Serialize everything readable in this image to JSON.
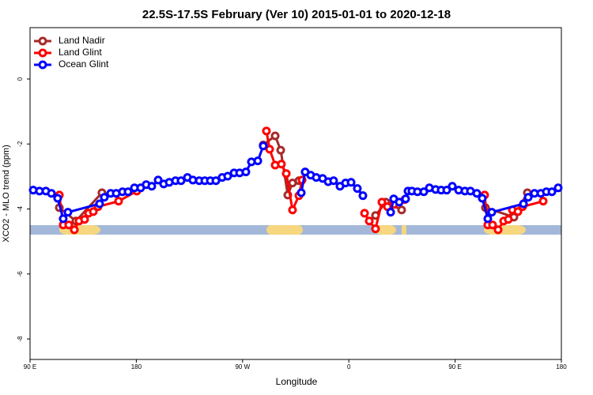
{
  "chart_data": {
    "type": "line",
    "title": "22.5S-17.5S February (Ver 10)   2015-01-01 to 2020-12-18",
    "xlabel": "Longitude",
    "ylabel": "XCO2 - MLO trend (ppm)",
    "xlim": [
      90,
      540
    ],
    "ylim": [
      -8.63,
      1.58
    ],
    "xticks": [
      {
        "value": 90,
        "label": "90 E"
      },
      {
        "value": 180,
        "label": "180"
      },
      {
        "value": 270,
        "label": "90 W"
      },
      {
        "value": 360,
        "label": "0"
      },
      {
        "value": 450,
        "label": "90 E"
      },
      {
        "value": 540,
        "label": "180"
      }
    ],
    "yticks": [
      0,
      -2,
      -4,
      -6,
      -8
    ],
    "legend": "upper left",
    "series": [
      {
        "name": "Land Nadir",
        "color": "#a52a2a",
        "x": [
          114.8,
          128.8,
          150.9,
          null,
          287.5,
          297.6,
          302.3,
          308.3,
          312.3,
          317.7,
          null,
          382.6,
          391.3,
          404.7,
          null,
          475.7,
          499.8,
          511.2
        ],
        "values": [
          -3.96,
          -4.37,
          -3.5,
          null,
          -2.03,
          -1.75,
          -2.19,
          -3.57,
          -3.2,
          -3.13,
          null,
          -4.2,
          -3.79,
          -4.03,
          null,
          -3.96,
          -4.25,
          -3.5
        ]
      },
      {
        "name": "Land Glint",
        "color": "#ff0000",
        "x": [
          114.8,
          118.1,
          122.8,
          127.5,
          131.5,
          136.2,
          139.6,
          143.6,
          147.6,
          165.0,
          180.4,
          null,
          290.2,
          292.9,
          297.6,
          302.9,
          307.0,
          312.3,
          317.7,
          320.4,
          null,
          373.3,
          377.3,
          382.6,
          388.0,
          392.7,
          398.0,
          407.4,
          null,
          475.0,
          477.7,
          481.7,
          486.4,
          491.1,
          495.1,
          498.5,
          503.2,
          507.2,
          524.6
        ],
        "values": [
          -3.57,
          -4.49,
          -4.49,
          -4.64,
          -4.37,
          -4.32,
          -4.13,
          -4.08,
          -3.93,
          -3.76,
          -3.45,
          null,
          -1.6,
          -2.16,
          -2.65,
          -2.62,
          -2.91,
          -4.03,
          -3.59,
          -3.11,
          null,
          -4.13,
          -4.37,
          -4.61,
          -3.79,
          -3.93,
          -3.86,
          -3.71,
          null,
          -3.57,
          -4.49,
          -4.49,
          -4.64,
          -4.37,
          -4.32,
          -4.03,
          -4.08,
          -3.93,
          -3.76
        ]
      },
      {
        "name": "Ocean Glint",
        "color": "#0000ff",
        "x": [
          92.7,
          98.0,
          103.4,
          108.1,
          113.4,
          118.1,
          122.1,
          148.9,
          152.9,
          158.3,
          163.0,
          168.3,
          173.0,
          178.4,
          183.7,
          188.4,
          193.1,
          198.5,
          203.2,
          207.9,
          213.2,
          217.9,
          223.3,
          227.9,
          233.3,
          238.0,
          242.7,
          247.4,
          252.7,
          257.4,
          262.8,
          267.5,
          272.8,
          277.5,
          282.9,
          287.5,
          null,
          319.7,
          323.0,
          327.7,
          332.4,
          337.8,
          342.5,
          347.1,
          352.5,
          357.2,
          361.9,
          367.2,
          371.9,
          null,
          395.4,
          398.0,
          402.7,
          408.1,
          410.1,
          413.4,
          418.1,
          423.5,
          428.2,
          433.5,
          438.2,
          442.9,
          447.6,
          453.0,
          458.3,
          463.0,
          468.4,
          473.0,
          477.7,
          481.1,
          507.9,
          511.9,
          517.2,
          522.6,
          527.3,
          532.0,
          537.3
        ],
        "values": [
          -3.42,
          -3.45,
          -3.45,
          -3.52,
          -3.67,
          -4.3,
          -4.1,
          -3.84,
          -3.64,
          -3.52,
          -3.52,
          -3.47,
          -3.47,
          -3.35,
          -3.35,
          -3.25,
          -3.3,
          -3.11,
          -3.23,
          -3.18,
          -3.13,
          -3.13,
          -3.03,
          -3.11,
          -3.13,
          -3.13,
          -3.13,
          -3.13,
          -3.03,
          -2.99,
          -2.89,
          -2.89,
          -2.86,
          -2.55,
          -2.52,
          -2.06,
          null,
          -3.5,
          -2.86,
          -2.96,
          -3.03,
          -3.06,
          -3.16,
          -3.13,
          -3.3,
          -3.2,
          -3.18,
          -3.37,
          -3.59,
          null,
          -4.1,
          -3.69,
          -3.79,
          -3.69,
          -3.45,
          -3.45,
          -3.47,
          -3.47,
          -3.35,
          -3.4,
          -3.42,
          -3.42,
          -3.3,
          -3.42,
          -3.45,
          -3.45,
          -3.52,
          -3.67,
          -4.3,
          -4.1,
          -3.84,
          -3.64,
          -3.52,
          -3.52,
          -3.47,
          -3.47,
          -3.35
        ]
      }
    ]
  }
}
